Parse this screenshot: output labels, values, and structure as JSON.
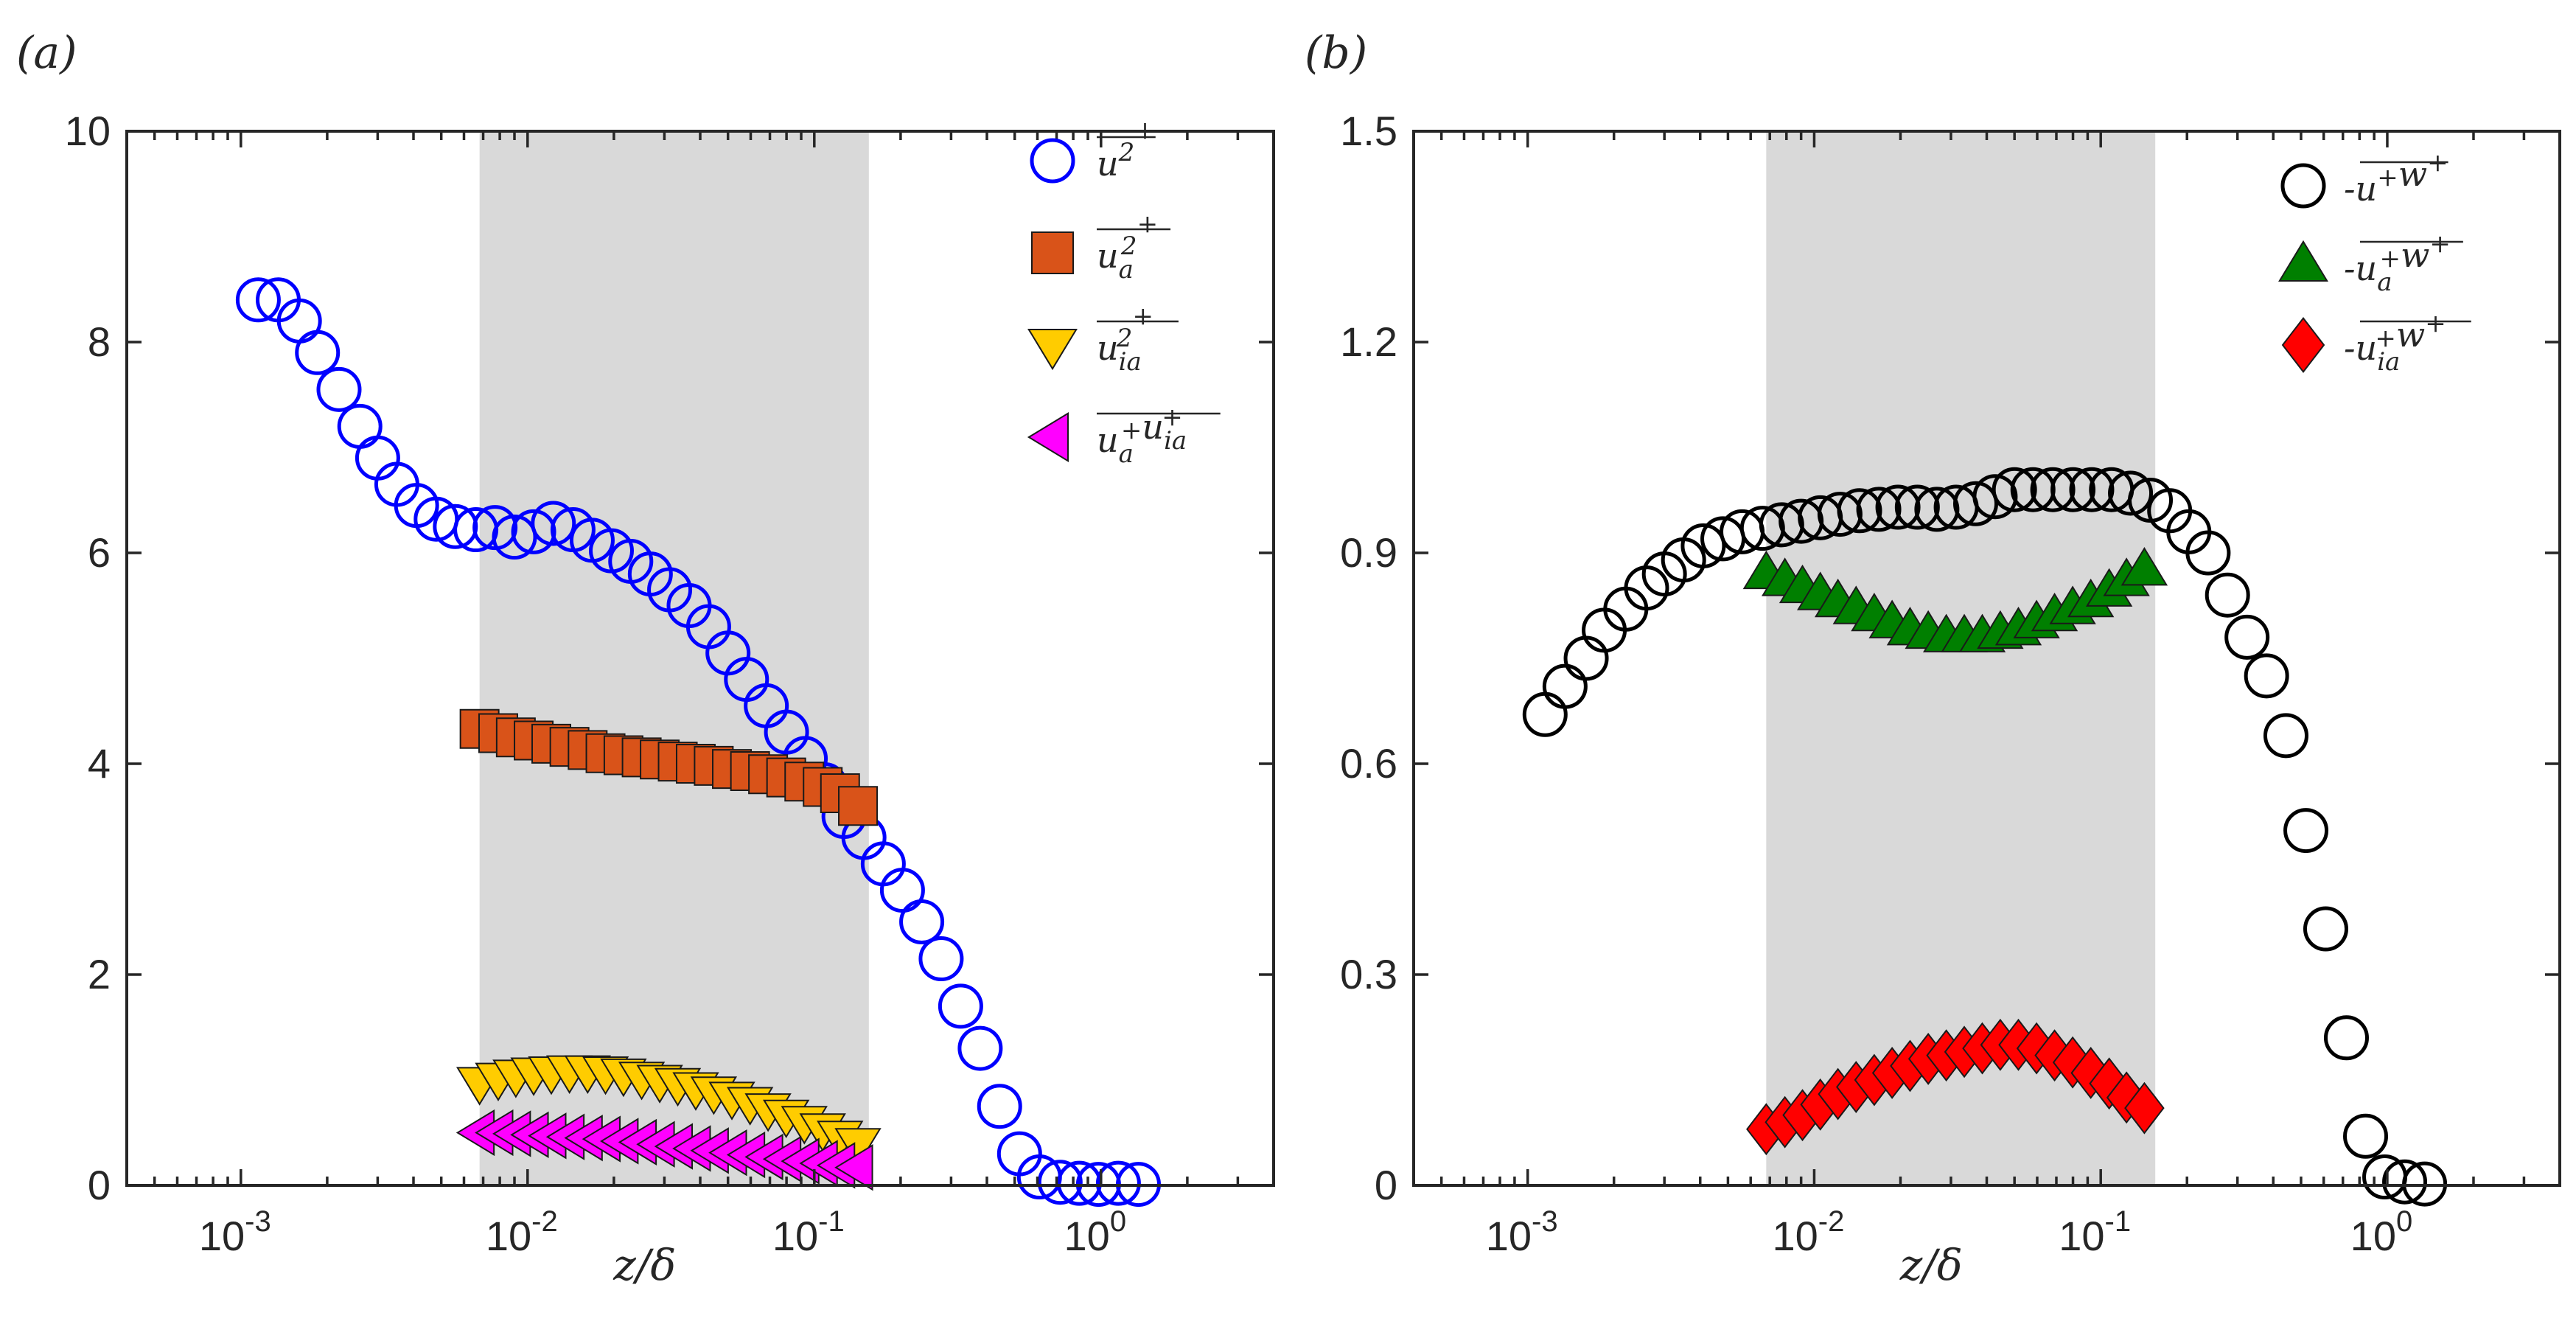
{
  "chart_data": [
    {
      "type": "scatter",
      "panel_label": "(a)",
      "xlabel": "z/δ",
      "ylabel": "",
      "xscale": "log",
      "xlim": [
        0.0004,
        4
      ],
      "ylim": [
        0,
        10
      ],
      "yticks": [
        "0",
        "2",
        "4",
        "6",
        "8",
        "10"
      ],
      "xticks": [
        {
          "base": "10",
          "exp": "-3"
        },
        {
          "base": "10",
          "exp": "-2"
        },
        {
          "base": "10",
          "exp": "-1"
        },
        {
          "base": "10",
          "exp": "0"
        }
      ],
      "shaded_region": [
        0.0068,
        0.155
      ],
      "legend_position": "top-right",
      "series": [
        {
          "name": "u²⁺",
          "legend": {
            "main": "u",
            "sup": "2",
            "sub": "",
            "tail_sup": "+"
          },
          "marker": "circle",
          "filled": false,
          "color": "#0000ff",
          "x": [
            0.00115,
            0.00135,
            0.0016,
            0.00185,
            0.0022,
            0.0026,
            0.003,
            0.0035,
            0.0041,
            0.0048,
            0.0056,
            0.0066,
            0.0077,
            0.009,
            0.0105,
            0.0123,
            0.0144,
            0.0168,
            0.0196,
            0.0229,
            0.0268,
            0.0313,
            0.0366,
            0.0428,
            0.05,
            0.058,
            0.068,
            0.08,
            0.093,
            0.109,
            0.127,
            0.149,
            0.174,
            0.203,
            0.237,
            0.277,
            0.324,
            0.379,
            0.443,
            0.52,
            0.61,
            0.72,
            0.84,
            0.98,
            1.15,
            1.35
          ],
          "y": [
            8.4,
            8.4,
            8.2,
            7.9,
            7.55,
            7.2,
            6.9,
            6.65,
            6.45,
            6.32,
            6.25,
            6.22,
            6.24,
            6.15,
            6.2,
            6.28,
            6.22,
            6.12,
            6.02,
            5.92,
            5.8,
            5.65,
            5.5,
            5.3,
            5.05,
            4.8,
            4.55,
            4.3,
            4.05,
            3.8,
            3.5,
            3.3,
            3.05,
            2.8,
            2.5,
            2.15,
            1.7,
            1.3,
            0.75,
            0.3,
            0.08,
            0.03,
            0.02,
            0.01,
            0.02,
            0.01
          ]
        },
        {
          "name": "u_a²⁺",
          "legend": {
            "main": "u",
            "sup": "2",
            "sub": "a",
            "tail_sup": "+"
          },
          "marker": "square",
          "filled": true,
          "color": "#d95319",
          "x": [
            0.0068,
            0.0079,
            0.0091,
            0.0105,
            0.0121,
            0.014,
            0.0162,
            0.0187,
            0.0216,
            0.025,
            0.0289,
            0.0334,
            0.0386,
            0.0446,
            0.0516,
            0.0597,
            0.069,
            0.0798,
            0.0923,
            0.107,
            0.123,
            0.142
          ],
          "y": [
            4.33,
            4.29,
            4.25,
            4.22,
            4.19,
            4.16,
            4.13,
            4.1,
            4.08,
            4.06,
            4.04,
            4.02,
            4.0,
            3.98,
            3.95,
            3.93,
            3.9,
            3.87,
            3.83,
            3.78,
            3.72,
            3.6
          ]
        },
        {
          "name": "u_ia²⁺",
          "legend": {
            "main": "u",
            "sup": "2",
            "sub": "ia",
            "tail_sup": "+"
          },
          "marker": "triangle-down",
          "filled": true,
          "color": "#ffcc00",
          "x": [
            0.0068,
            0.0079,
            0.0091,
            0.0105,
            0.0121,
            0.014,
            0.0162,
            0.0187,
            0.0216,
            0.025,
            0.0289,
            0.0334,
            0.0386,
            0.0446,
            0.0516,
            0.0597,
            0.069,
            0.0798,
            0.0923,
            0.107,
            0.123,
            0.142
          ],
          "y": [
            0.98,
            1.02,
            1.05,
            1.07,
            1.08,
            1.09,
            1.09,
            1.08,
            1.06,
            1.03,
            1.0,
            0.97,
            0.93,
            0.89,
            0.84,
            0.79,
            0.73,
            0.67,
            0.61,
            0.54,
            0.47,
            0.4
          ]
        },
        {
          "name": "u_a⁺u_ia⁺",
          "legend": {
            "main": "u",
            "sup": "+",
            "sub": "a",
            "second": "u",
            "second_sup": "+",
            "second_sub": "ia"
          },
          "marker": "triangle-left",
          "filled": true,
          "color": "#ff00ff",
          "x": [
            0.0068,
            0.0079,
            0.0091,
            0.0105,
            0.0121,
            0.014,
            0.0162,
            0.0187,
            0.0216,
            0.025,
            0.0289,
            0.0334,
            0.0386,
            0.0446,
            0.0516,
            0.0597,
            0.069,
            0.0798,
            0.0923,
            0.107,
            0.123,
            0.142
          ],
          "y": [
            0.5,
            0.5,
            0.49,
            0.48,
            0.47,
            0.46,
            0.45,
            0.44,
            0.42,
            0.41,
            0.39,
            0.37,
            0.35,
            0.33,
            0.31,
            0.29,
            0.27,
            0.25,
            0.23,
            0.21,
            0.19,
            0.17
          ]
        }
      ]
    },
    {
      "type": "scatter",
      "panel_label": "(b)",
      "xlabel": "z/δ",
      "ylabel": "",
      "xscale": "log",
      "xlim": [
        0.0004,
        4
      ],
      "ylim": [
        0,
        1.5
      ],
      "yticks": [
        "0",
        "0.3",
        "0.6",
        "0.9",
        "1.2",
        "1.5"
      ],
      "xticks": [
        {
          "base": "10",
          "exp": "-3"
        },
        {
          "base": "10",
          "exp": "-2"
        },
        {
          "base": "10",
          "exp": "-1"
        },
        {
          "base": "10",
          "exp": "0"
        }
      ],
      "shaded_region": [
        0.0068,
        0.155
      ],
      "legend_position": "top-right",
      "series": [
        {
          "name": "-u⁺w⁺",
          "legend": {
            "prefix": "-",
            "main": "u",
            "sup": "+",
            "sub": "",
            "second": "w",
            "second_sup": "+"
          },
          "marker": "circle",
          "filled": false,
          "color": "#000000",
          "x": [
            0.00115,
            0.00135,
            0.0016,
            0.00185,
            0.0022,
            0.0026,
            0.003,
            0.0035,
            0.0041,
            0.0048,
            0.0056,
            0.0066,
            0.0077,
            0.009,
            0.0105,
            0.0123,
            0.0144,
            0.0168,
            0.0196,
            0.0229,
            0.0268,
            0.0313,
            0.0366,
            0.0428,
            0.05,
            0.058,
            0.068,
            0.08,
            0.093,
            0.109,
            0.127,
            0.149,
            0.174,
            0.203,
            0.237,
            0.277,
            0.324,
            0.379,
            0.443,
            0.52,
            0.61,
            0.72,
            0.84,
            0.98,
            1.15,
            1.35
          ],
          "y": [
            0.67,
            0.71,
            0.75,
            0.79,
            0.82,
            0.85,
            0.87,
            0.89,
            0.91,
            0.92,
            0.93,
            0.935,
            0.94,
            0.945,
            0.95,
            0.955,
            0.96,
            0.962,
            0.965,
            0.965,
            0.962,
            0.965,
            0.97,
            0.98,
            0.99,
            0.99,
            0.99,
            0.99,
            0.99,
            0.99,
            0.985,
            0.975,
            0.96,
            0.93,
            0.9,
            0.84,
            0.78,
            0.725,
            0.64,
            0.505,
            0.365,
            0.21,
            0.07,
            0.012,
            0.005,
            0.002
          ]
        },
        {
          "name": "-u_a⁺w⁺",
          "legend": {
            "prefix": "-",
            "main": "u",
            "sup": "+",
            "sub": "a",
            "second": "w",
            "second_sup": "+"
          },
          "marker": "triangle-up",
          "filled": true,
          "color": "#007f00",
          "x": [
            0.0068,
            0.0079,
            0.0091,
            0.0105,
            0.0121,
            0.014,
            0.0162,
            0.0187,
            0.0216,
            0.025,
            0.0289,
            0.0334,
            0.0386,
            0.0446,
            0.0516,
            0.0597,
            0.069,
            0.0798,
            0.0923,
            0.107,
            0.123,
            0.142
          ],
          "y": [
            0.87,
            0.86,
            0.85,
            0.84,
            0.83,
            0.82,
            0.81,
            0.8,
            0.79,
            0.785,
            0.78,
            0.78,
            0.78,
            0.785,
            0.79,
            0.8,
            0.81,
            0.82,
            0.83,
            0.845,
            0.86,
            0.875
          ]
        },
        {
          "name": "-u_ia⁺w⁺",
          "legend": {
            "prefix": "-",
            "main": "u",
            "sup": "+",
            "sub": "ia",
            "second": "w",
            "second_sup": "+"
          },
          "marker": "diamond",
          "filled": true,
          "color": "#ff0000",
          "x": [
            0.0068,
            0.0079,
            0.0091,
            0.0105,
            0.0121,
            0.014,
            0.0162,
            0.0187,
            0.0216,
            0.025,
            0.0289,
            0.0334,
            0.0386,
            0.0446,
            0.0516,
            0.0597,
            0.069,
            0.0798,
            0.0923,
            0.107,
            0.123,
            0.142
          ],
          "y": [
            0.08,
            0.09,
            0.1,
            0.115,
            0.13,
            0.14,
            0.15,
            0.16,
            0.17,
            0.18,
            0.185,
            0.19,
            0.195,
            0.2,
            0.2,
            0.195,
            0.185,
            0.175,
            0.16,
            0.145,
            0.125,
            0.11
          ]
        }
      ]
    }
  ]
}
